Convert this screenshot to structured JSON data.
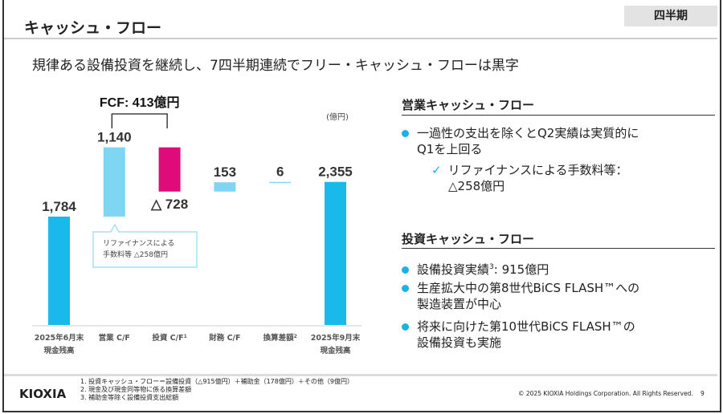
{
  "header": {
    "title": "キャッシュ・フロー",
    "period_tag": "四半期"
  },
  "subtitle": "規律ある設備投資を継続し、7四半期連続でフリー・キャッシュ・フローは黒字",
  "chart_data": {
    "type": "waterfall",
    "unit_label": "(億円)",
    "fcf_label": "FCF: 413億円",
    "categories": [
      [
        "2025年6月末",
        "現金残高"
      ],
      [
        "営業 C/F"
      ],
      [
        "投資 C/F",
        "1"
      ],
      [
        "財務 C/F"
      ],
      [
        "換算差額",
        "2"
      ],
      [
        "2025年9月末",
        "現金残高"
      ]
    ],
    "values": [
      1784,
      1140,
      -728,
      153,
      6,
      2355
    ],
    "kinds": [
      "total",
      "delta",
      "delta",
      "delta",
      "delta",
      "total"
    ],
    "value_labels": [
      "1,784",
      "1,140",
      "△ 728",
      "153",
      "6",
      "2,355"
    ],
    "colors": {
      "total": "#1ab9ec",
      "positive": "#7fd6f3",
      "negative": "#e00b7b"
    },
    "callout": [
      "リファイナンスによる",
      "手数料等 △258億円"
    ]
  },
  "operating": {
    "heading": "営業キャッシュ・フロー",
    "bullets": [
      "一過性の支出を除くとQ2実績は実質的に",
      "Q1を上回る"
    ],
    "sub": [
      "リファイナンスによる手数料等：",
      "△258億円"
    ]
  },
  "investing": {
    "heading": "投資キャッシュ・フロー",
    "bullets": [
      [
        "設備投資実績",
        "3",
        ": 915億円"
      ],
      [
        "生産拡大中の第8世代BiCS FLASH™への",
        "製造装置が中心"
      ],
      [
        "将来に向けた第10世代BiCS FLASH™の",
        "設備投資も実施"
      ]
    ]
  },
  "footer": {
    "notes": [
      "1. 投資キャッシュ・フロー＝設備投資（△915億円）＋補助金（178億円）＋その他（9億円）",
      "2. 現金及び現金同等物に係る換算差額",
      "3. 補助金等除く設備投資支出総額"
    ],
    "logo": "KIOXIA",
    "copyright": "© 2025 KIOXIA Holdings Corporation. All Rights Reserved.",
    "page": "9"
  }
}
